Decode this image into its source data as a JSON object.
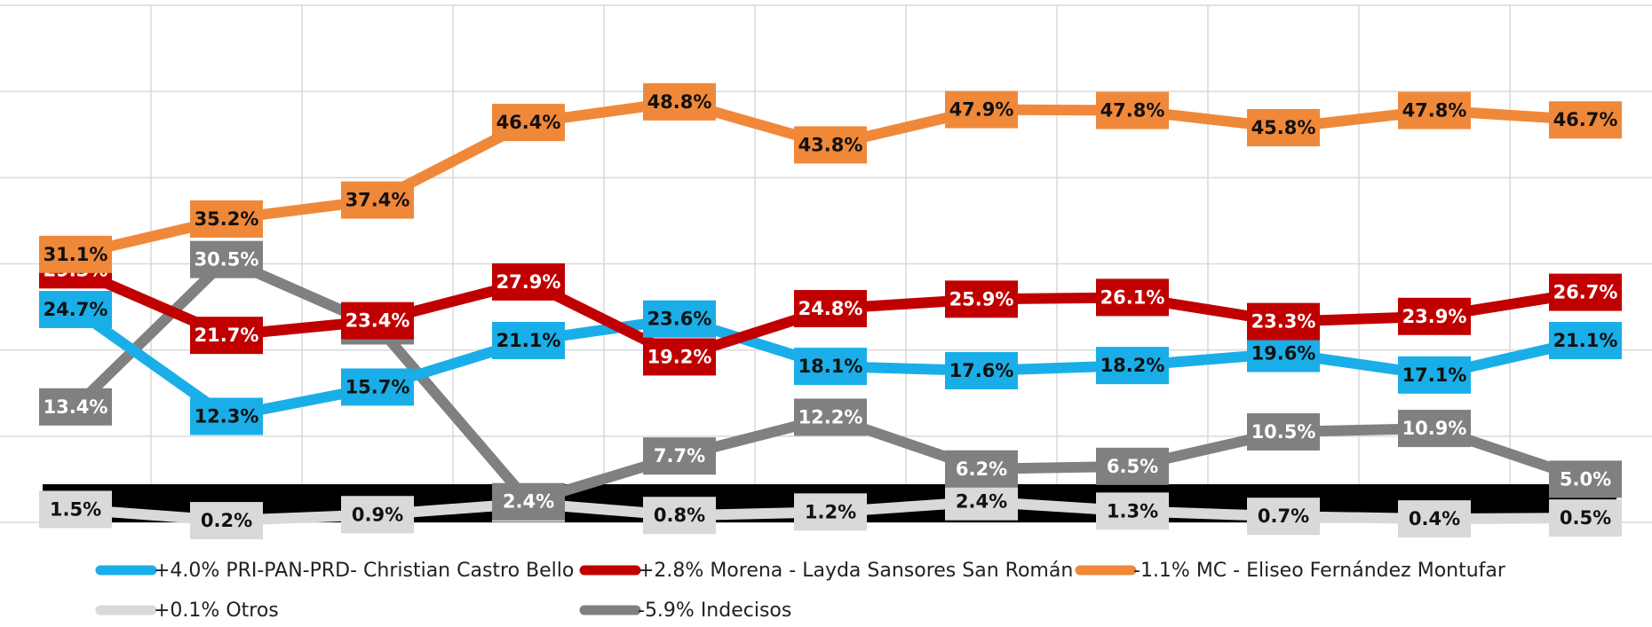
{
  "chart_data": {
    "type": "line",
    "categories": [
      null,
      null,
      null,
      null,
      null,
      null,
      null,
      null,
      null,
      null,
      null
    ],
    "ylim": [
      0,
      60
    ],
    "yticks": [
      0,
      10,
      20,
      30,
      40,
      50,
      60
    ],
    "grid": true,
    "legend": "bottom",
    "series": [
      {
        "name": "+4.0% PRI-PAN-PRD- Christian Castro Bello",
        "color": "#1aaee8",
        "values": [
          24.7,
          12.3,
          15.7,
          21.1,
          23.6,
          18.1,
          17.6,
          18.2,
          19.6,
          17.1,
          21.1
        ],
        "value_labels": [
          "24.7%",
          "12.3%",
          "15.7%",
          "21.1%",
          "23.6%",
          "18.1%",
          "17.6%",
          "18.2%",
          "19.6%",
          "17.1%",
          "21.1%"
        ]
      },
      {
        "name": "+2.8% Morena - Layda Sansores San Román",
        "color": "#c00000",
        "values": [
          29.3,
          21.7,
          23.4,
          27.9,
          19.2,
          24.8,
          25.9,
          26.1,
          23.3,
          23.9,
          26.7
        ],
        "value_labels": [
          "29.3%",
          "21.7%",
          "23.4%",
          "27.9%",
          "19.2%",
          "24.8%",
          "25.9%",
          "26.1%",
          "23.3%",
          "23.9%",
          "26.7%"
        ]
      },
      {
        "name": "-1.1% MC - Eliseo Fernández Montufar",
        "color": "#f0883a",
        "values": [
          31.1,
          35.2,
          37.4,
          46.4,
          48.8,
          43.8,
          47.9,
          47.8,
          45.8,
          47.8,
          46.7
        ],
        "value_labels": [
          "31.1%",
          "35.2%",
          "37.4%",
          "46.4%",
          "48.8%",
          "43.8%",
          "47.9%",
          "47.8%",
          "45.8%",
          "47.8%",
          "46.7%"
        ]
      },
      {
        "name": "+0.1% Otros",
        "color": "#d9d9d9",
        "values": [
          1.5,
          0.2,
          0.9,
          2.2,
          0.8,
          1.2,
          2.4,
          1.3,
          0.7,
          0.4,
          0.5
        ],
        "value_labels": [
          "1.5%",
          "0.2%",
          "0.9%",
          "2.2%",
          "0.8%",
          "1.2%",
          "2.4%",
          "1.3%",
          "0.7%",
          "0.4%",
          "0.5%"
        ]
      },
      {
        "name": "-5.9% Indecisos",
        "color": "#808080",
        "values": [
          13.4,
          30.5,
          22.8,
          2.4,
          7.7,
          12.2,
          6.2,
          6.5,
          10.5,
          10.9,
          5.0
        ],
        "value_labels": [
          "13.4%",
          "30.5%",
          "22.8%",
          "2.4%",
          "7.7%",
          "12.2%",
          "6.2%",
          "6.5%",
          "10.5%",
          "10.9%",
          "5.0%"
        ]
      }
    ]
  }
}
